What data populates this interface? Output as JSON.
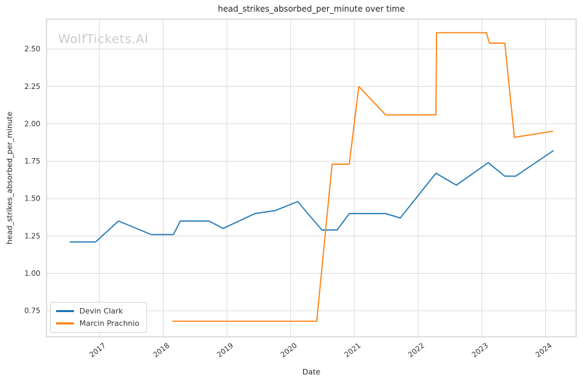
{
  "watermark": "WolfTickets.AI",
  "colors": {
    "series_blue": "#1f77b4",
    "series_orange": "#ff7f0e",
    "grid": "#dcdcdc",
    "spine": "#cccccc",
    "tick_text": "#333333",
    "title_text": "#262626",
    "watermark_text": "#cbcbcb",
    "background": "#ffffff"
  },
  "chart_data": {
    "type": "line",
    "title": "head_strikes_absorbed_per_minute over time",
    "xlabel": "Date",
    "ylabel": "head_strikes_absorbed_per_minute",
    "grid": true,
    "legend_position": "lower left",
    "x_ticks": [
      2017,
      2018,
      2019,
      2020,
      2021,
      2022,
      2023,
      2024
    ],
    "y_ticks": [
      0.75,
      1.0,
      1.25,
      1.5,
      1.75,
      2.0,
      2.25,
      2.5
    ],
    "x_range": [
      2016.17,
      2024.48
    ],
    "y_range": [
      0.576,
      2.7
    ],
    "x_unit": "decimal_year",
    "series": [
      {
        "name": "Devin Clark",
        "color": "#1f77b4",
        "points": [
          [
            2016.54,
            1.21
          ],
          [
            2016.94,
            1.21
          ],
          [
            2017.3,
            1.35
          ],
          [
            2017.81,
            1.26
          ],
          [
            2018.16,
            1.26
          ],
          [
            2018.27,
            1.35
          ],
          [
            2018.72,
            1.35
          ],
          [
            2018.94,
            1.3
          ],
          [
            2019.44,
            1.4
          ],
          [
            2019.76,
            1.42
          ],
          [
            2020.11,
            1.48
          ],
          [
            2020.49,
            1.29
          ],
          [
            2020.73,
            1.29
          ],
          [
            2020.92,
            1.4
          ],
          [
            2021.49,
            1.4
          ],
          [
            2021.72,
            1.37
          ],
          [
            2022.28,
            1.67
          ],
          [
            2022.6,
            1.59
          ],
          [
            2023.1,
            1.74
          ],
          [
            2023.36,
            1.65
          ],
          [
            2023.53,
            1.65
          ],
          [
            2024.12,
            1.82
          ]
        ]
      },
      {
        "name": "Marcin Prachnio",
        "color": "#ff7f0e",
        "points": [
          [
            2018.15,
            0.68
          ],
          [
            2020.41,
            0.68
          ],
          [
            2020.65,
            1.73
          ],
          [
            2020.92,
            1.73
          ],
          [
            2021.07,
            2.25
          ],
          [
            2021.49,
            2.06
          ],
          [
            2022.28,
            2.06
          ],
          [
            2022.29,
            2.61
          ],
          [
            2023.07,
            2.61
          ],
          [
            2023.12,
            2.54
          ],
          [
            2023.36,
            2.54
          ],
          [
            2023.51,
            1.91
          ],
          [
            2024.11,
            1.95
          ]
        ]
      }
    ]
  }
}
